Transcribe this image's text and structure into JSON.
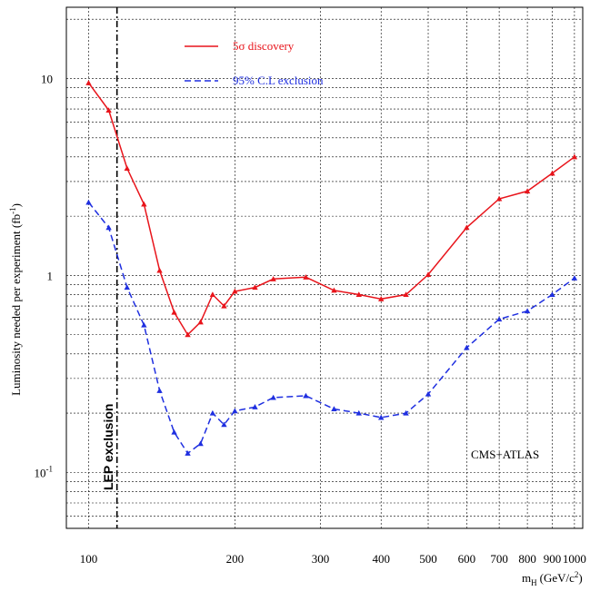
{
  "chart_data": {
    "type": "line",
    "title": "",
    "xlabel": "m",
    "xlabel_sub": "H",
    "xlabel_unit_pre": "(GeV/c",
    "xlabel_unit_sup": "2",
    "xlabel_unit_post": ")",
    "ylabel": "Luminosity needed per experiment (fb",
    "ylabel_sup": "-1",
    "ylabel_post": ")",
    "xscale": "log",
    "yscale": "log",
    "xlim": [
      90,
      1040
    ],
    "ylim": [
      0.052,
      23
    ],
    "grid": true,
    "x_ticks": [
      {
        "value": 100,
        "label": "100"
      },
      {
        "value": 200,
        "label": "200"
      },
      {
        "value": 300,
        "label": "300"
      },
      {
        "value": 400,
        "label": "400"
      },
      {
        "value": 500,
        "label": "500"
      },
      {
        "value": 600,
        "label": "600"
      },
      {
        "value": 700,
        "label": "700"
      },
      {
        "value": 800,
        "label": "800"
      },
      {
        "value": 900,
        "label": "900"
      },
      {
        "value": 1000,
        "label": "1000"
      }
    ],
    "y_ticks": [
      {
        "value": 10,
        "base": "10",
        "sup": ""
      },
      {
        "value": 1,
        "base": "1",
        "sup": ""
      },
      {
        "value": 0.1,
        "base": "10",
        "sup": "-1"
      }
    ],
    "legend_position": "top-center",
    "series": [
      {
        "name": "5σ discovery",
        "color": "#e8141b",
        "style": "solid",
        "x": [
          100,
          110,
          120,
          130,
          140,
          150,
          160,
          170,
          180,
          190,
          200,
          220,
          240,
          280,
          320,
          360,
          400,
          450,
          500,
          600,
          700,
          800,
          900,
          1000
        ],
        "y": [
          9.5,
          6.9,
          3.5,
          2.3,
          1.06,
          0.65,
          0.5,
          0.58,
          0.8,
          0.7,
          0.83,
          0.87,
          0.96,
          0.98,
          0.84,
          0.8,
          0.76,
          0.8,
          1.01,
          1.75,
          2.45,
          2.68,
          3.3,
          4.0
        ]
      },
      {
        "name": "95% C.L exclusion",
        "color": "#1f2fe0",
        "style": "dashed",
        "x": [
          100,
          110,
          120,
          130,
          140,
          150,
          160,
          170,
          180,
          190,
          200,
          220,
          240,
          280,
          320,
          360,
          400,
          450,
          500,
          600,
          700,
          800,
          900,
          1000
        ],
        "y": [
          2.35,
          1.75,
          0.87,
          0.56,
          0.26,
          0.16,
          0.125,
          0.14,
          0.2,
          0.175,
          0.205,
          0.215,
          0.24,
          0.245,
          0.21,
          0.2,
          0.19,
          0.2,
          0.25,
          0.43,
          0.6,
          0.66,
          0.8,
          0.97
        ]
      }
    ],
    "annotations": [
      {
        "text": "LEP exclusion",
        "x": 114.4
      },
      {
        "text": "CMS+ATLAS"
      }
    ]
  }
}
